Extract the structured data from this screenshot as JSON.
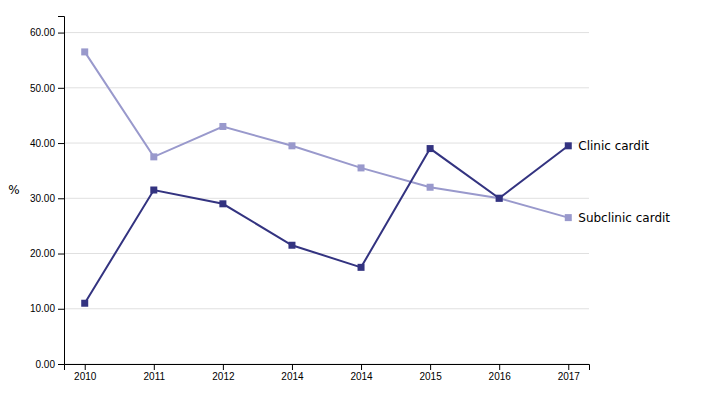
{
  "chart_data": {
    "type": "line",
    "ylabel": "%",
    "categories": [
      "2010",
      "2011",
      "2012",
      "2014",
      "2014",
      "2015",
      "2016",
      "2017"
    ],
    "series": [
      {
        "name": "Subclinic cardit",
        "color": "#9999cc",
        "marker": "square",
        "values": [
          56.5,
          37.5,
          43.0,
          39.5,
          35.5,
          32.0,
          30.0,
          26.5
        ]
      },
      {
        "name": "Clinic cardit",
        "color": "#333380",
        "marker": "square",
        "values": [
          11.0,
          31.5,
          29.0,
          21.5,
          17.5,
          39.0,
          30.0,
          39.5
        ]
      }
    ],
    "ylim": [
      0,
      63
    ],
    "yticks": [
      {
        "value": 0,
        "label": "0.00"
      },
      {
        "value": 10,
        "label": "10.00"
      },
      {
        "value": 20,
        "label": "20.00"
      },
      {
        "value": 30,
        "label": "30.00"
      },
      {
        "value": 40,
        "label": "40.00"
      },
      {
        "value": 50,
        "label": "50.00"
      },
      {
        "value": 60,
        "label": "60.00"
      }
    ],
    "grid": true
  }
}
